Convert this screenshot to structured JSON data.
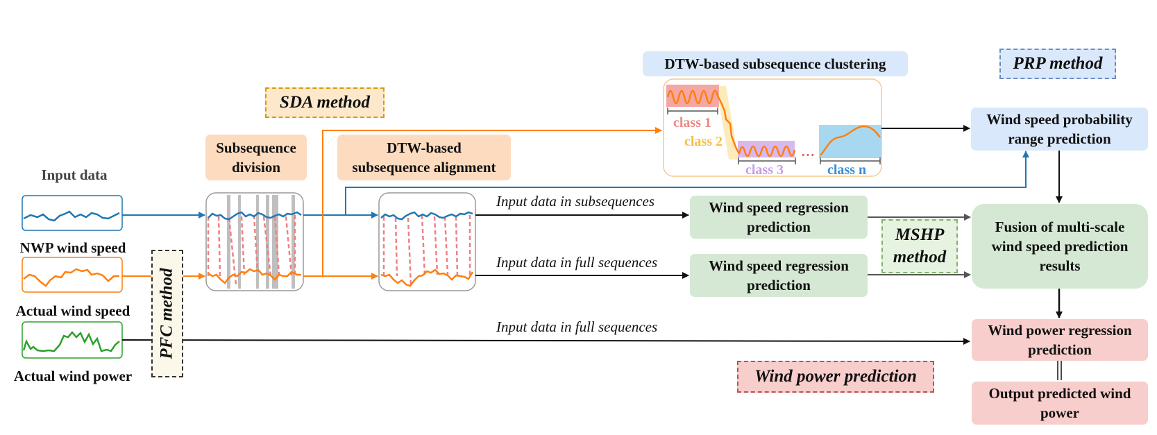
{
  "inputs": {
    "title": "Input data",
    "nwp": "NWP wind speed",
    "actual_speed": "Actual wind speed",
    "actual_power": "Actual wind power"
  },
  "methods": {
    "pfc": "PFC method",
    "sda": "SDA method",
    "prp": "PRP method",
    "mshp_line1": "MSHP",
    "mshp_line2": "method",
    "wpp": "Wind power prediction"
  },
  "steps": {
    "subseq_div_1": "Subsequence",
    "subseq_div_2": "division",
    "dtw_align_1": "DTW-based",
    "dtw_align_2": "subsequence alignment",
    "dtw_cluster": "DTW-based subsequence clustering"
  },
  "classes": {
    "c1": "class 1",
    "c2": "class 2",
    "c3": "class 3",
    "ellipsis": "…",
    "cn": "class n"
  },
  "flows": {
    "sub": "Input data in subsequences",
    "full1": "Input data in full sequences",
    "full2": "Input data in full sequences"
  },
  "boxes": {
    "reg1_1": "Wind speed regression",
    "reg1_2": "prediction",
    "reg2_1": "Wind speed regression",
    "reg2_2": "prediction",
    "prob_1": "Wind speed probability",
    "prob_2": "range prediction",
    "fusion_1": "Fusion of multi-scale",
    "fusion_2": "wind speed prediction",
    "fusion_3": "results",
    "power_1": "Wind power regression",
    "power_2": "prediction",
    "out_1": "Output predicted wind",
    "out_2": "power"
  },
  "colors": {
    "blue_series": "#1f77b4",
    "orange_series": "#ff7f0e",
    "green_series": "#2ca02c",
    "alignment_dash": "#f08080",
    "class1_fill": "#f4a7a3",
    "class2_text": "#f5c044",
    "class3_fill": "#d9b8f0",
    "classn_fill": "#a8d8f0"
  }
}
